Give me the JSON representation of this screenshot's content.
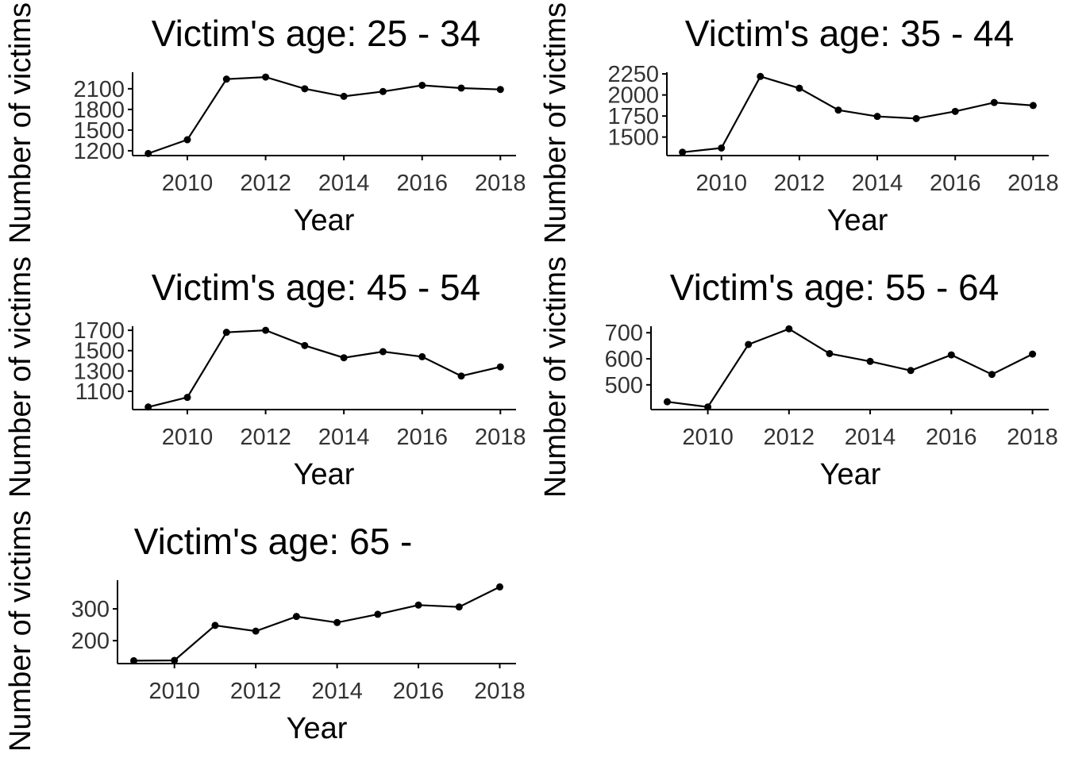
{
  "chart_data": [
    {
      "type": "line",
      "title": "Victim's age: 25 - 34",
      "xlabel": "Year",
      "ylabel": "Number of victims",
      "x": [
        2009,
        2010,
        2011,
        2012,
        2013,
        2014,
        2015,
        2016,
        2017,
        2018
      ],
      "values": [
        1160,
        1360,
        2240,
        2270,
        2100,
        1990,
        2060,
        2150,
        2110,
        2090
      ],
      "xticks": [
        2010,
        2012,
        2014,
        2016,
        2018
      ],
      "yticks": [
        1200,
        1500,
        1800,
        2100
      ],
      "xlim": [
        2008.6,
        2018.4
      ],
      "ylim": [
        1130,
        2340
      ],
      "grid": false,
      "legend": "none"
    },
    {
      "type": "line",
      "title": "Victim's age: 35 - 44",
      "xlabel": "Year",
      "ylabel": "Number of victims",
      "x": [
        2009,
        2010,
        2011,
        2012,
        2013,
        2014,
        2015,
        2016,
        2017,
        2018
      ],
      "values": [
        1320,
        1370,
        2220,
        2080,
        1820,
        1745,
        1720,
        1805,
        1910,
        1875
      ],
      "xticks": [
        2010,
        2012,
        2014,
        2016,
        2018
      ],
      "yticks": [
        1500,
        1750,
        2000,
        2250
      ],
      "xlim": [
        2008.6,
        2018.4
      ],
      "ylim": [
        1280,
        2270
      ],
      "grid": false,
      "legend": "none"
    },
    {
      "type": "line",
      "title": "Victim's age: 45 - 54",
      "xlabel": "Year",
      "ylabel": "Number of victims",
      "x": [
        2009,
        2010,
        2011,
        2012,
        2013,
        2014,
        2015,
        2016,
        2017,
        2018
      ],
      "values": [
        945,
        1040,
        1680,
        1700,
        1550,
        1430,
        1490,
        1440,
        1250,
        1340
      ],
      "xticks": [
        2010,
        2012,
        2014,
        2016,
        2018
      ],
      "yticks": [
        1100,
        1300,
        1500,
        1700
      ],
      "xlim": [
        2008.6,
        2018.4
      ],
      "ylim": [
        920,
        1740
      ],
      "grid": false,
      "legend": "none"
    },
    {
      "type": "line",
      "title": "Victim's age: 55 - 64",
      "xlabel": "Year",
      "ylabel": "Number of victims",
      "x": [
        2009,
        2010,
        2011,
        2012,
        2013,
        2014,
        2015,
        2016,
        2017,
        2018
      ],
      "values": [
        435,
        415,
        655,
        715,
        620,
        590,
        555,
        615,
        540,
        618
      ],
      "xticks": [
        2010,
        2012,
        2014,
        2016,
        2018
      ],
      "yticks": [
        500,
        600,
        700
      ],
      "xlim": [
        2008.6,
        2018.4
      ],
      "ylim": [
        405,
        725
      ],
      "grid": false,
      "legend": "none"
    },
    {
      "type": "line",
      "title": "Victim's age: 65 -",
      "xlabel": "Year",
      "ylabel": "Number of victims",
      "x": [
        2009,
        2010,
        2011,
        2012,
        2013,
        2014,
        2015,
        2016,
        2017,
        2018
      ],
      "values": [
        137,
        138,
        248,
        230,
        276,
        257,
        283,
        312,
        306,
        369
      ],
      "xticks": [
        2010,
        2012,
        2014,
        2016,
        2018
      ],
      "yticks": [
        200,
        300
      ],
      "xlim": [
        2008.6,
        2018.4
      ],
      "ylim": [
        128,
        390
      ],
      "grid": false,
      "legend": "none"
    }
  ]
}
